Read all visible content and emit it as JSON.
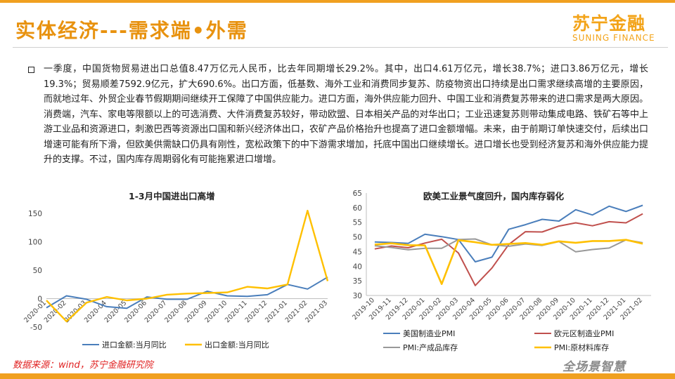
{
  "header": {
    "title": "实体经济---需求端•外需",
    "logo_cn": "苏宁金融",
    "logo_en": "SUNING FINANCE"
  },
  "body_text": "一季度，中国货物贸易进出口总值8.47万亿元人民币，比去年同期增长29.2%。其中，出口4.61万亿元，增长38.7%；进口3.86万亿元，增长19.3%；贸易顺差7592.9亿元，扩大690.6%。出口方面，低基数、海外工业和消费同步复苏、防疫物资出口持续是出口需求继续高增的主要原因，而就地过年、外贸企业春节假期期间继续开工保障了中国供应能力。进口方面，海外供应能力回升、中国工业和消费复苏带来的进口需求是两大原因。消费端，汽车、家电等限额以上的可选消费、大件消费复苏较好，带动欧盟、日本相关产品的对华出口；工业迅速复苏则带动集成电路、铁矿石等中上游工业品和资源进口，刺激巴西等资源出口国和新兴经济体出口，农矿产品价格抬升也提高了进口金额增幅。未来，由于前期订单快速交付，后续出口增速可能有所下滑，但欧美供需缺口仍具有刚性，宽松政策下的中下游需求增加，托底中国出口继续增长。进口增长也受到经济复苏和海外供应能力提升的支撑。不过，国内库存周期弱化有可能拖累进口增增。",
  "chart_data": [
    {
      "type": "line",
      "title": "1-3月中国进出口高增",
      "categories": [
        "2020-01",
        "2020-02",
        "2020-03",
        "2020-04",
        "2020-05",
        "2020-06",
        "2020-07",
        "2020-08",
        "2020-09",
        "2020-10",
        "2020-11",
        "2020-12",
        "2021-01",
        "2021-02",
        "2021-03"
      ],
      "ylim": [
        -50,
        170
      ],
      "yticks": [
        -50,
        0,
        50,
        100,
        150
      ],
      "series": [
        {
          "name": "进口金额:当月同比",
          "color": "#4a7ebb",
          "values": [
            -16,
            5,
            -1,
            -14,
            -17,
            3,
            -1,
            -1,
            13,
            5,
            4,
            7,
            25,
            17,
            38
          ]
        },
        {
          "name": "出口金额:当月同比",
          "color": "#ffc000",
          "values": [
            -3,
            -40,
            -7,
            3,
            -3,
            0,
            7,
            9,
            10,
            11,
            21,
            18,
            25,
            155,
            31
          ]
        }
      ]
    },
    {
      "type": "line",
      "title": "欧美工业景气度回升，国内库存弱化",
      "categories": [
        "2019-10",
        "2019-11",
        "2019-12",
        "2020-01",
        "2020-02",
        "2020-03",
        "2020-04",
        "2020-05",
        "2020-06",
        "2020-07",
        "2020-08",
        "2020-09",
        "2020-10",
        "2020-11",
        "2020-12",
        "2021-01",
        "2021-02"
      ],
      "ylim": [
        30,
        65
      ],
      "yticks": [
        30,
        35,
        40,
        45,
        50,
        55,
        60,
        65
      ],
      "series": [
        {
          "name": "美国制造业PMI",
          "color": "#4a7ebb",
          "values": [
            48.3,
            48.1,
            47.8,
            50.9,
            50.1,
            49.1,
            41.5,
            43.1,
            52.6,
            54.2,
            56.0,
            55.4,
            59.3,
            57.5,
            60.5,
            58.7,
            60.8
          ]
        },
        {
          "name": "欧元区制造业PMI",
          "color": "#c0504d",
          "values": [
            45.9,
            46.9,
            46.3,
            47.9,
            49.2,
            44.5,
            33.4,
            39.4,
            47.4,
            51.8,
            51.7,
            53.7,
            54.8,
            53.8,
            55.2,
            54.8,
            57.9
          ]
        },
        {
          "name": "PMI:产成品库存",
          "color": "#999999",
          "values": [
            47.0,
            46.4,
            45.6,
            46.1,
            46.1,
            49.1,
            49.3,
            47.3,
            46.8,
            47.6,
            47.1,
            48.4,
            44.9,
            45.7,
            46.2,
            49.0,
            48.0
          ]
        },
        {
          "name": "PMI:原材料库存",
          "color": "#ffc000",
          "values": [
            47.4,
            47.8,
            47.2,
            47.1,
            33.9,
            48.9,
            48.2,
            47.3,
            47.6,
            47.9,
            47.3,
            48.5,
            48.0,
            48.6,
            48.6,
            49.0,
            47.7
          ]
        }
      ]
    }
  ],
  "footer": {
    "source": "数据来源：wind，苏宁金融研究院",
    "slogan": "全场景智慧"
  }
}
